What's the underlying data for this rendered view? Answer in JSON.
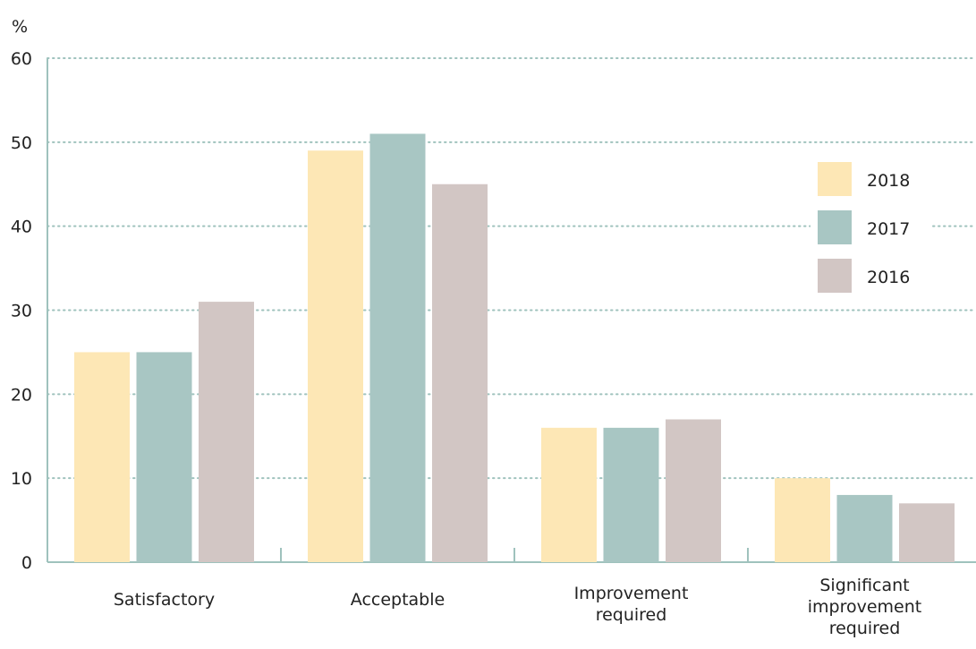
{
  "chart_data": {
    "type": "bar",
    "title": "",
    "xlabel": "",
    "ylabel": "%",
    "ylim": [
      0,
      60
    ],
    "yticks": [
      0,
      10,
      20,
      30,
      40,
      50,
      60
    ],
    "grid": true,
    "legend_position": "right",
    "categories": [
      [
        "Satisfactory"
      ],
      [
        "Acceptable"
      ],
      [
        "Improvement",
        "required"
      ],
      [
        "Significant",
        "improvement",
        "required"
      ]
    ],
    "series": [
      {
        "name": "2018",
        "color": "#fde7b5",
        "values": [
          25,
          49,
          16,
          10
        ]
      },
      {
        "name": "2017",
        "color": "#a8c6c3",
        "values": [
          25,
          51,
          16,
          8
        ]
      },
      {
        "name": "2016",
        "color": "#d2c6c4",
        "values": [
          31,
          45,
          17,
          7
        ]
      }
    ],
    "colors": {
      "grid": "#9fc2bd",
      "axis": "#9fc2bd"
    }
  }
}
